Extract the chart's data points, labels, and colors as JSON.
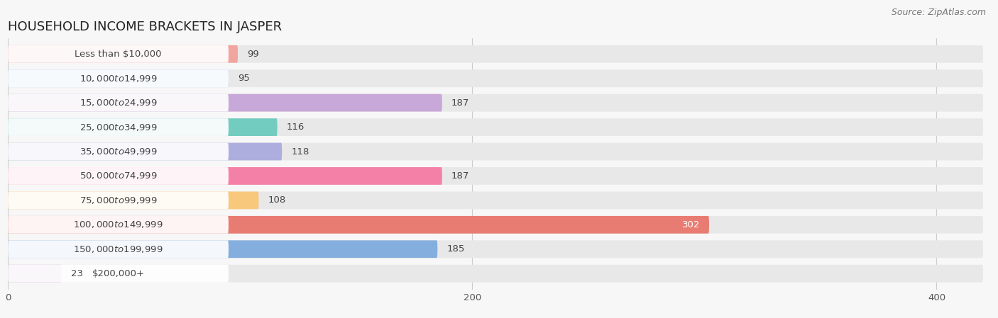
{
  "title": "HOUSEHOLD INCOME BRACKETS IN JASPER",
  "source": "Source: ZipAtlas.com",
  "categories": [
    "Less than $10,000",
    "$10,000 to $14,999",
    "$15,000 to $24,999",
    "$25,000 to $34,999",
    "$35,000 to $49,999",
    "$50,000 to $74,999",
    "$75,000 to $99,999",
    "$100,000 to $149,999",
    "$150,000 to $199,999",
    "$200,000+"
  ],
  "values": [
    99,
    95,
    187,
    116,
    118,
    187,
    108,
    302,
    185,
    23
  ],
  "bar_colors": [
    "#F2A49E",
    "#A4C8E8",
    "#C8A8D8",
    "#72CCC0",
    "#AEAEDE",
    "#F480A8",
    "#F8C87C",
    "#E87C72",
    "#84AEDD",
    "#CCA8CC"
  ],
  "background_color": "#f7f7f7",
  "bar_background_color": "#e8e8e8",
  "label_bg_color": "#ffffff",
  "xlim_max": 420,
  "title_fontsize": 13,
  "label_fontsize": 9.5,
  "value_fontsize": 9.5,
  "source_fontsize": 9
}
